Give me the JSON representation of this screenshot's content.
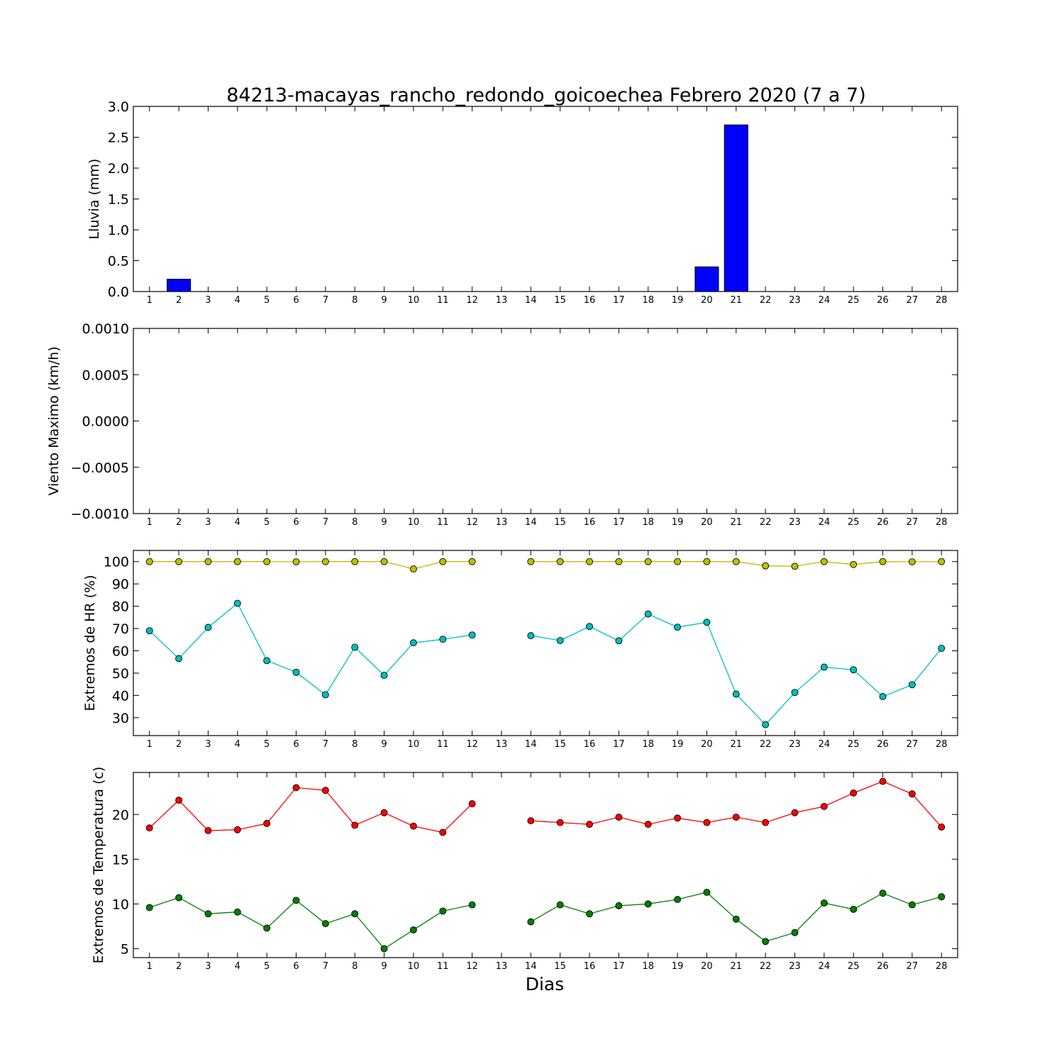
{
  "title": "84213-macayas_rancho_redondo_goicoechea Febrero 2020  (7 a 7)",
  "xlabel": "Dias",
  "chart_data": [
    {
      "type": "bar",
      "ylabel": "Lluvia (mm)",
      "ylim": [
        0,
        3.0
      ],
      "yticks": [
        "0.0",
        "0.5",
        "1.0",
        "1.5",
        "2.0",
        "2.5",
        "3.0"
      ],
      "ytick_values": [
        0,
        0.5,
        1.0,
        1.5,
        2.0,
        2.5,
        3.0
      ],
      "categories": [
        "1",
        "2",
        "3",
        "4",
        "5",
        "6",
        "7",
        "8",
        "9",
        "10",
        "11",
        "12",
        "13",
        "14",
        "15",
        "16",
        "17",
        "18",
        "19",
        "20",
        "21",
        "22",
        "23",
        "24",
        "25",
        "26",
        "27",
        "28"
      ],
      "values": [
        0,
        0.2,
        0,
        0,
        0,
        0,
        0,
        0,
        0,
        0,
        0,
        0,
        0,
        0,
        0,
        0,
        0,
        0,
        0,
        0.4,
        2.7,
        0,
        0,
        0,
        0,
        0,
        0,
        0
      ],
      "color": "#0000ff"
    },
    {
      "type": "line",
      "ylabel": "Viento Maximo (km/h)",
      "ylim": [
        -0.001,
        0.001
      ],
      "yticks": [
        "−0.0010",
        "−0.0005",
        "0.0000",
        "0.0005",
        "0.0010"
      ],
      "ytick_values": [
        -0.001,
        -0.0005,
        0,
        0.0005,
        0.001
      ],
      "categories": [
        "1",
        "2",
        "3",
        "4",
        "5",
        "6",
        "7",
        "8",
        "9",
        "10",
        "11",
        "12",
        "13",
        "14",
        "15",
        "16",
        "17",
        "18",
        "19",
        "20",
        "21",
        "22",
        "23",
        "24",
        "25",
        "26",
        "27",
        "28"
      ],
      "series": []
    },
    {
      "type": "line",
      "ylabel": "Extremos de HR (%)",
      "ylim": [
        22,
        105
      ],
      "yticks": [
        "30",
        "40",
        "50",
        "60",
        "70",
        "80",
        "90",
        "100"
      ],
      "ytick_values": [
        30,
        40,
        50,
        60,
        70,
        80,
        90,
        100
      ],
      "categories": [
        "1",
        "2",
        "3",
        "4",
        "5",
        "6",
        "7",
        "8",
        "9",
        "10",
        "11",
        "12",
        "13",
        "14",
        "15",
        "16",
        "17",
        "18",
        "19",
        "20",
        "21",
        "22",
        "23",
        "24",
        "25",
        "26",
        "27",
        "28"
      ],
      "series": [
        {
          "color": "#bfbf00",
          "values": [
            100,
            100,
            100,
            100,
            100,
            99.9,
            100,
            100,
            100,
            96.7,
            100,
            100,
            null,
            100,
            100,
            100,
            100,
            100,
            100,
            100,
            100,
            98.1,
            97.9,
            100,
            98.7,
            100,
            99.9,
            100
          ]
        },
        {
          "color": "#00bfbf",
          "values": [
            69,
            56.5,
            70.5,
            81.3,
            55.6,
            50.4,
            40.3,
            61.6,
            49,
            63.6,
            65.2,
            67.1,
            null,
            66.8,
            64.6,
            70.9,
            64.5,
            76.5,
            70.6,
            72.8,
            40.6,
            26.9,
            41.3,
            52.7,
            51.5,
            39.5,
            44.8,
            61.1
          ]
        }
      ]
    },
    {
      "type": "line",
      "ylabel": "Extremos de Temperatura (c)",
      "ylim": [
        4,
        24.7
      ],
      "yticks": [
        "5",
        "10",
        "15",
        "20"
      ],
      "ytick_values": [
        5,
        10,
        15,
        20
      ],
      "categories": [
        "1",
        "2",
        "3",
        "4",
        "5",
        "6",
        "7",
        "8",
        "9",
        "10",
        "11",
        "12",
        "13",
        "14",
        "15",
        "16",
        "17",
        "18",
        "19",
        "20",
        "21",
        "22",
        "23",
        "24",
        "25",
        "26",
        "27",
        "28"
      ],
      "series": [
        {
          "color": "#ff0000",
          "values": [
            18.5,
            21.6,
            18.2,
            18.3,
            19,
            23,
            22.7,
            18.8,
            20.2,
            18.7,
            18,
            21.2,
            null,
            19.3,
            19.1,
            18.9,
            19.7,
            18.9,
            19.6,
            19.1,
            19.7,
            19.1,
            20.2,
            20.9,
            22.4,
            23.7,
            22.3,
            18.6
          ]
        },
        {
          "color": "#008000",
          "values": [
            9.6,
            10.7,
            8.9,
            9.1,
            7.3,
            10.4,
            7.8,
            8.9,
            5,
            7.1,
            9.2,
            9.9,
            null,
            8,
            9.9,
            8.9,
            9.8,
            10,
            10.5,
            11.3,
            8.3,
            5.8,
            6.8,
            10.1,
            9.4,
            11.2,
            9.9,
            10.8
          ]
        }
      ]
    }
  ]
}
